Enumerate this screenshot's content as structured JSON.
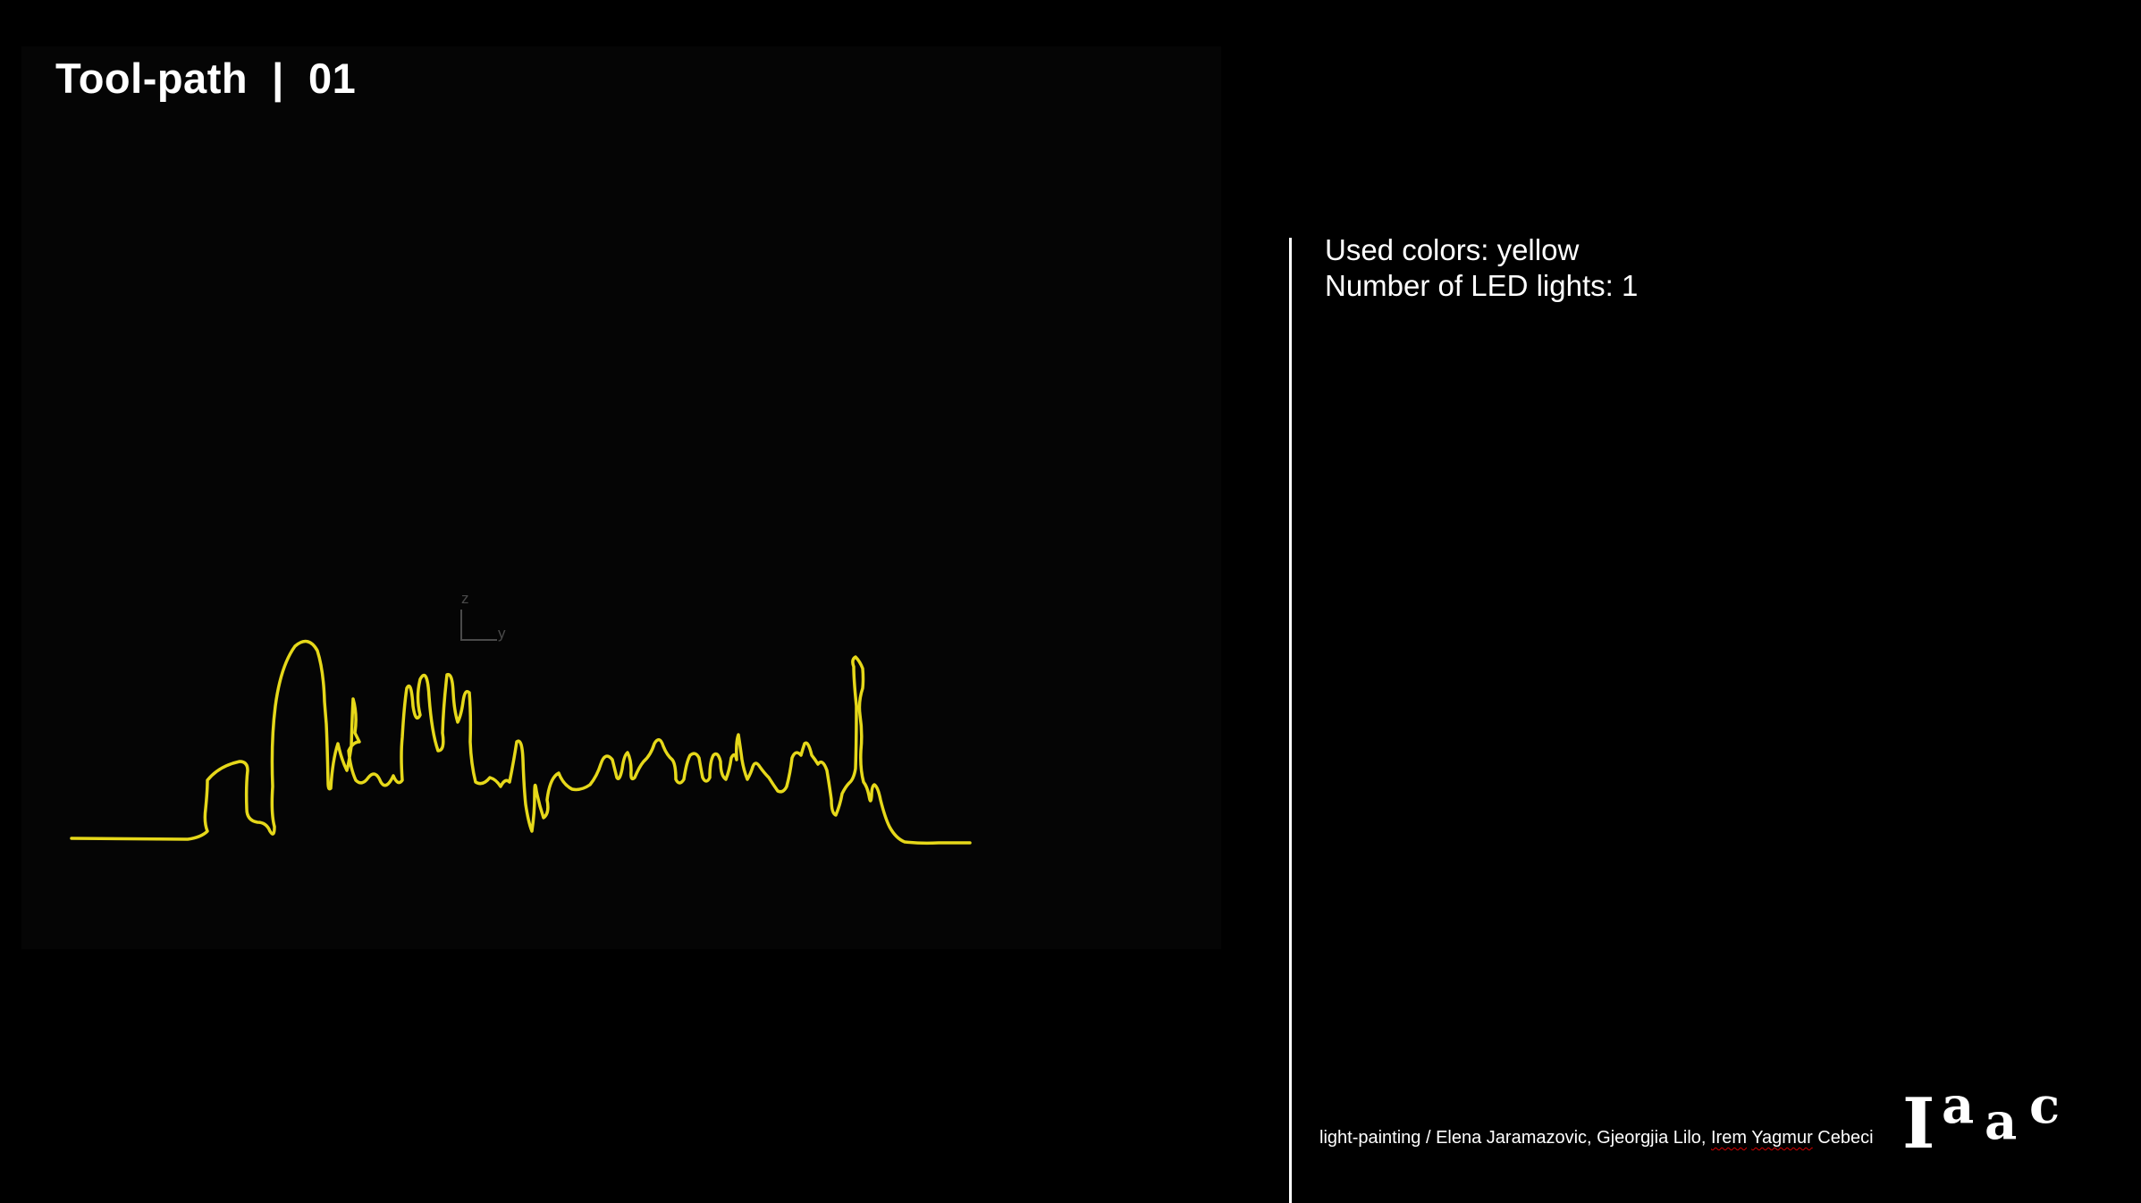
{
  "slide": {
    "title": "Tool-path  |  01"
  },
  "viewport": {
    "axis_z": "z",
    "axis_y": "y",
    "toolpath_color": "#e6d81a"
  },
  "info": {
    "used_colors": "Used colors: yellow",
    "led_lights": "Number of LED lights: 1"
  },
  "credits": {
    "prefix": "light-painting / Elena Jaramazovic, Gjeorgjia Lilo, ",
    "name_1": "Irem",
    "space": " ",
    "name_2": "Yagmur",
    "suffix": " Cebeci"
  },
  "logo": {
    "text": "Iaac"
  }
}
